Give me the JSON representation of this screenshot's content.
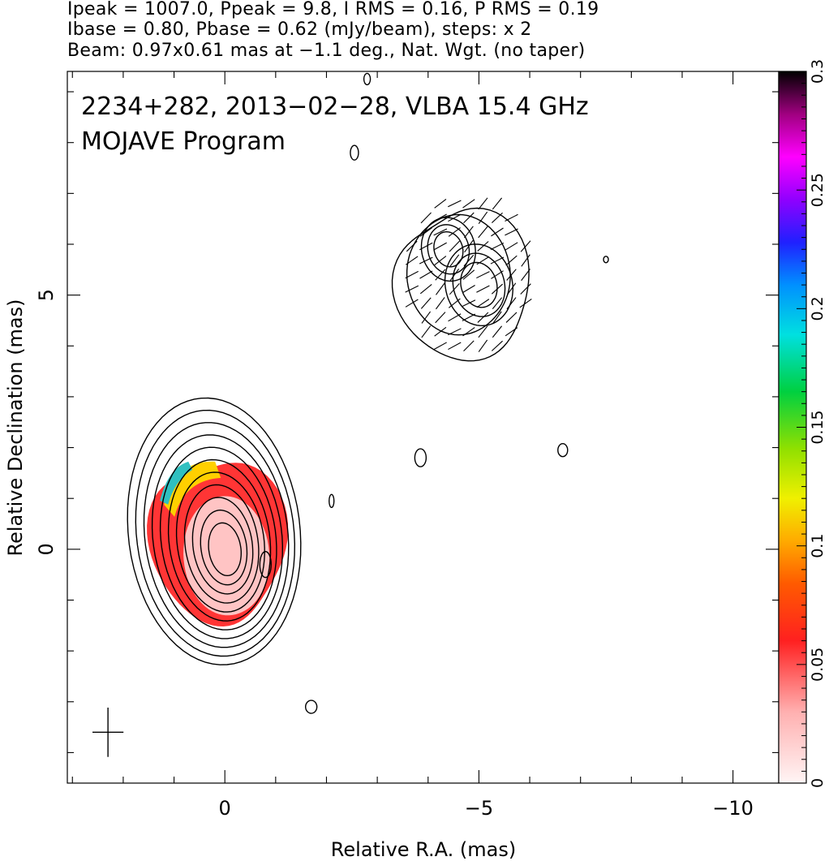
{
  "header": {
    "line1": "Ipeak = 1007.0, Ppeak = 9.8, I RMS = 0.16, P RMS = 0.19",
    "line2": "Ibase = 0.80, Pbase = 0.62 (mJy/beam), steps: x 2",
    "line3": "Beam: 0.97x0.61 mas at −1.1 deg., Nat. Wgt. (no taper)"
  },
  "chart_data": {
    "type": "heatmap",
    "title": "2234+282, 2013−02−28, VLBA 15.4 GHz",
    "subtitle": "MOJAVE Program",
    "xlabel": "Relative R.A. (mas)",
    "ylabel": "Relative Declination (mas)",
    "xlim": [
      3.1,
      -10.9
    ],
    "ylim": [
      -4.6,
      9.4
    ],
    "x_ticks": [
      0,
      -5,
      -10
    ],
    "x_tick_labels": [
      "0",
      "−5",
      "−10"
    ],
    "y_ticks": [
      0,
      5
    ],
    "y_tick_labels": [
      "0",
      "5"
    ],
    "colorbar": {
      "range": [
        0,
        0.3
      ],
      "ticks": [
        0,
        0.05,
        0.1,
        0.15,
        0.2,
        0.25,
        0.3
      ],
      "tick_labels": [
        "0",
        "0.05",
        "0.1",
        "0.15",
        "0.2",
        "0.25",
        "0.3"
      ]
    },
    "contour_components": [
      {
        "x": 0,
        "y": 0,
        "major": 0.55,
        "minor": 0.35,
        "levels": 11
      },
      {
        "x": -4.4,
        "y": 5.9,
        "major": 0.35,
        "minor": 0.28,
        "levels": 3
      },
      {
        "x": -5.0,
        "y": 5.2,
        "major": 0.45,
        "minor": 0.35,
        "levels": 3
      }
    ],
    "beam": {
      "major_mas": 0.97,
      "minor_mas": 0.61,
      "pa_deg": -1.1,
      "x": 2.3,
      "y": -3.6
    }
  }
}
